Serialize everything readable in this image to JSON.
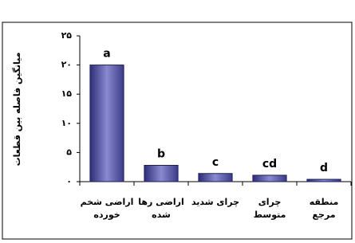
{
  "chart_data": {
    "type": "bar",
    "y_label": "میانگین فاصله بین قطعات",
    "categories": [
      "اراضی شخم خورده",
      "اراضی رها شده",
      "چرای شدید",
      "چرای متوسط",
      "منطقه مرجع"
    ],
    "values": [
      20,
      2.8,
      1.4,
      1.1,
      0.4
    ],
    "letters": [
      "a",
      "b",
      "c",
      "cd",
      "d"
    ],
    "color": "#5c5ca8",
    "ylim": [
      0,
      25
    ],
    "yticks": [
      {
        "value": 0,
        "label": "۰"
      },
      {
        "value": 5,
        "label": "۵"
      },
      {
        "value": 10,
        "label": "۱۰"
      },
      {
        "value": 15,
        "label": "۱۵"
      },
      {
        "value": 20,
        "label": "۲۰"
      },
      {
        "value": 25,
        "label": "۲۵"
      }
    ]
  }
}
